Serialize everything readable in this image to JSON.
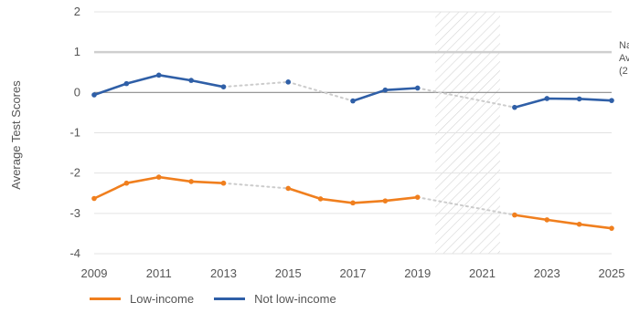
{
  "chart_data": {
    "type": "line",
    "ylabel": "Average Test Scores",
    "xlabel": "",
    "xlim": [
      2009,
      2025
    ],
    "ylim": [
      -4,
      2
    ],
    "x_ticks": [
      "2009",
      "2011",
      "2013",
      "2015",
      "2017",
      "2019",
      "2021",
      "2023",
      "2025"
    ],
    "y_ticks": [
      "2",
      "1",
      "0",
      "-1",
      "-2",
      "-3",
      "-4"
    ],
    "grid": true,
    "legend_position": "bottom-left",
    "reference_line": {
      "value": 1.0,
      "label_lines": [
        "Na",
        "Av",
        "(2"
      ]
    },
    "zero_line": 0,
    "shaded_region": {
      "x_start": 2019.55,
      "x_end": 2021.55,
      "pattern": "diagonal-hatch"
    },
    "series": [
      {
        "name": "Low-income",
        "color": "#f07f1e",
        "segments": [
          [
            [
              2009,
              -2.63
            ],
            [
              2010,
              -2.25
            ],
            [
              2011,
              -2.1
            ],
            [
              2012,
              -2.21
            ],
            [
              2013,
              -2.25
            ]
          ],
          [
            [
              2015,
              -2.38
            ],
            [
              2016,
              -2.64
            ],
            [
              2017,
              -2.74
            ],
            [
              2018,
              -2.69
            ],
            [
              2019,
              -2.6
            ]
          ],
          [
            [
              2022,
              -3.04
            ],
            [
              2023,
              -3.16
            ],
            [
              2024,
              -3.27
            ],
            [
              2025,
              -3.37
            ]
          ]
        ]
      },
      {
        "name": "Not low-income",
        "color": "#2f5fa7",
        "segments": [
          [
            [
              2009,
              -0.06
            ],
            [
              2010,
              0.22
            ],
            [
              2011,
              0.43
            ],
            [
              2012,
              0.3
            ],
            [
              2013,
              0.14
            ]
          ],
          [
            [
              2015,
              0.26
            ]
          ],
          [
            [
              2017,
              -0.21
            ],
            [
              2018,
              0.06
            ],
            [
              2019,
              0.11
            ]
          ],
          [
            [
              2022,
              -0.37
            ],
            [
              2023,
              -0.15
            ],
            [
              2024,
              -0.16
            ],
            [
              2025,
              -0.2
            ]
          ]
        ]
      }
    ],
    "gap_style": {
      "color": "#cccccc",
      "dash": "dotted"
    }
  }
}
